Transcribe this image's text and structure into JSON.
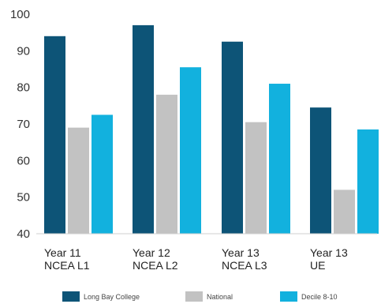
{
  "chart_data": {
    "type": "bar",
    "categories": [
      [
        "Year 11",
        "NCEA L1"
      ],
      [
        "Year 12",
        "NCEA L2"
      ],
      [
        "Year 13",
        "NCEA L3"
      ],
      [
        "Year 13",
        "UE"
      ]
    ],
    "series": [
      {
        "name": "Long Bay College",
        "color": "#0d5477",
        "values": [
          94,
          97,
          92.5,
          74.5
        ]
      },
      {
        "name": "National",
        "color": "#c2c2c2",
        "values": [
          69,
          78,
          70.5,
          52
        ]
      },
      {
        "name": "Decile 8-10",
        "color": "#12b1de",
        "values": [
          72.5,
          85.5,
          81,
          68.5
        ]
      }
    ],
    "yticks": [
      40,
      50,
      60,
      70,
      80,
      90,
      100
    ],
    "ylim": [
      40,
      100
    ],
    "grid": false,
    "legend_position": "bottom"
  }
}
